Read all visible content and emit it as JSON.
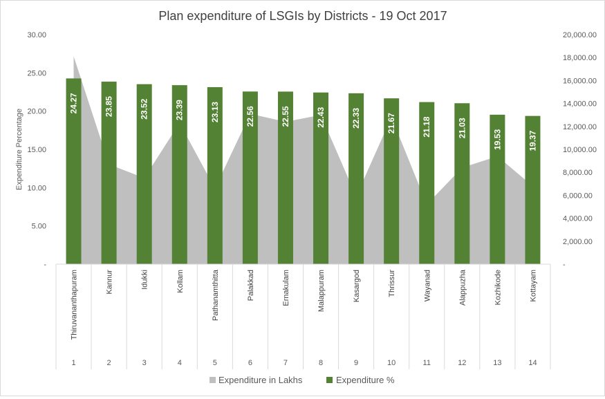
{
  "chart_data": {
    "type": "bar",
    "title": "Plan expenditure of LSGIs by Districts - 19 Oct 2017",
    "xlabel": "",
    "ylabel": "Expenditure Percentage",
    "y2label": "",
    "categories": [
      "Thiruvananthapuram",
      "Kannur",
      "Idukki",
      "Kollam",
      "Pathanamthitta",
      "Palakkad",
      "Ernakulam",
      "Malappuram",
      "Kasargod",
      "Thrissur",
      "Wayanad",
      "Alappuzha",
      "Kozhikode",
      "Kottayam"
    ],
    "category_index": [
      "1",
      "2",
      "3",
      "4",
      "5",
      "6",
      "7",
      "8",
      "9",
      "10",
      "11",
      "12",
      "13",
      "14"
    ],
    "ylim": [
      0,
      30
    ],
    "y2lim": [
      0,
      20000
    ],
    "y_ticks": [
      {
        "value": 0,
        "label": "-"
      },
      {
        "value": 5,
        "label": "5.00"
      },
      {
        "value": 10,
        "label": "10.00"
      },
      {
        "value": 15,
        "label": "15.00"
      },
      {
        "value": 20,
        "label": "20.00"
      },
      {
        "value": 25,
        "label": "25.00"
      },
      {
        "value": 30,
        "label": "30.00"
      }
    ],
    "y2_ticks": [
      {
        "value": 0,
        "label": "-"
      },
      {
        "value": 2000,
        "label": "2,000.00"
      },
      {
        "value": 4000,
        "label": "4,000.00"
      },
      {
        "value": 6000,
        "label": "6,000.00"
      },
      {
        "value": 8000,
        "label": "8,000.00"
      },
      {
        "value": 10000,
        "label": "10,000.00"
      },
      {
        "value": 12000,
        "label": "12,000.00"
      },
      {
        "value": 14000,
        "label": "14,000.00"
      },
      {
        "value": 16000,
        "label": "16,000.00"
      },
      {
        "value": 18000,
        "label": "18,000.00"
      },
      {
        "value": 20000,
        "label": "20,000.00"
      }
    ],
    "series": [
      {
        "name": "Expenditure in Lakhs",
        "type": "area",
        "axis": "secondary",
        "color": "#bfbfbf",
        "values": [
          18100,
          8700,
          7500,
          12300,
          6600,
          13100,
          12400,
          13000,
          5900,
          12800,
          5200,
          8400,
          9400,
          6800
        ]
      },
      {
        "name": "Expenditure %",
        "type": "bar",
        "axis": "primary",
        "color": "#548235",
        "values": [
          24.27,
          23.85,
          23.52,
          23.39,
          23.13,
          22.56,
          22.55,
          22.43,
          22.33,
          21.67,
          21.18,
          21.03,
          19.53,
          19.37
        ],
        "data_labels": [
          "24.27",
          "23.85",
          "23.52",
          "23.39",
          "23.13",
          "22.56",
          "22.55",
          "22.43",
          "22.33",
          "21.67",
          "21.18",
          "21.03",
          "19.53",
          "19.37"
        ]
      }
    ],
    "legend": {
      "placement": "bottom-center"
    },
    "grid": false
  }
}
